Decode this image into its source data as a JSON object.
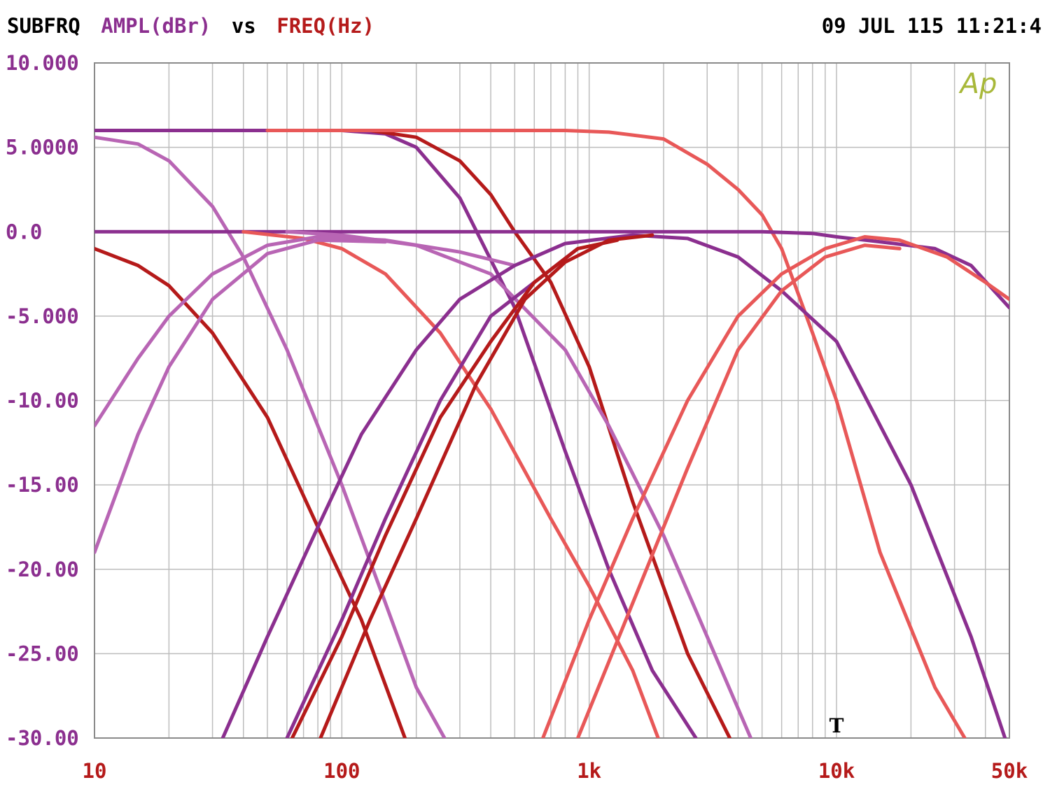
{
  "header": {
    "title_prefix": "SUBFRQ",
    "y_label": "AMPL(dBr)",
    "vs": "vs",
    "x_label": "FREQ(Hz)",
    "timestamp": "09 JUL 115 11:21:4"
  },
  "watermark": "Ap",
  "marker": "T",
  "colors": {
    "background": "#ffffff",
    "grid": "#bdbdbd",
    "frame": "#8a8a8a",
    "purple_dark": "#8b2f8f",
    "purple_light": "#b865b4",
    "red_dark": "#b51a1a",
    "red_light": "#e85858",
    "title_black": "#000000",
    "ylabel_purple": "#8b2f8f",
    "xlabel_red": "#b51a1a",
    "watermark": "#a8b83a"
  },
  "chart_data": {
    "type": "line",
    "x_scale": "log",
    "xlim": [
      10,
      50000
    ],
    "ylim": [
      -30,
      10
    ],
    "grid": true,
    "x_ticks": [
      {
        "value": 10,
        "label": "10"
      },
      {
        "value": 100,
        "label": "100"
      },
      {
        "value": 1000,
        "label": "1k"
      },
      {
        "value": 10000,
        "label": "10k"
      },
      {
        "value": 50000,
        "label": "50k"
      }
    ],
    "y_ticks": [
      {
        "value": 10,
        "label": "10.000"
      },
      {
        "value": 5,
        "label": "5.0000"
      },
      {
        "value": 0,
        "label": "0.0"
      },
      {
        "value": -5,
        "label": "-5.000"
      },
      {
        "value": -10,
        "label": "-10.00"
      },
      {
        "value": -15,
        "label": "-15.00"
      },
      {
        "value": -20,
        "label": "-20.00"
      },
      {
        "value": -25,
        "label": "-25.00"
      },
      {
        "value": -30,
        "label": "-30.00"
      }
    ],
    "marker_x": 10000,
    "series": [
      {
        "color": "purple_dark",
        "points": [
          [
            10,
            6
          ],
          [
            50,
            6
          ],
          [
            100,
            6
          ],
          [
            150,
            5.8
          ],
          [
            200,
            5
          ],
          [
            300,
            2
          ],
          [
            500,
            -4.5
          ],
          [
            800,
            -13
          ],
          [
            1200,
            -20
          ],
          [
            1800,
            -26
          ],
          [
            2700,
            -30
          ]
        ]
      },
      {
        "color": "red_dark",
        "points": [
          [
            130,
            6
          ],
          [
            200,
            5.6
          ],
          [
            300,
            4.2
          ],
          [
            400,
            2.2
          ],
          [
            500,
            0
          ],
          [
            700,
            -3
          ],
          [
            1000,
            -8
          ],
          [
            1500,
            -16
          ],
          [
            2500,
            -25
          ],
          [
            3700,
            -30
          ]
        ]
      },
      {
        "color": "red_light",
        "points": [
          [
            50,
            6
          ],
          [
            300,
            6
          ],
          [
            800,
            6
          ],
          [
            1200,
            5.9
          ],
          [
            2000,
            5.5
          ],
          [
            3000,
            4
          ],
          [
            4000,
            2.5
          ],
          [
            5000,
            1
          ],
          [
            6000,
            -1
          ],
          [
            8000,
            -6
          ],
          [
            10000,
            -10
          ],
          [
            15000,
            -19
          ],
          [
            25000,
            -27
          ],
          [
            33000,
            -30
          ]
        ]
      },
      {
        "color": "purple_light",
        "points": [
          [
            10,
            5.6
          ],
          [
            15,
            5.2
          ],
          [
            20,
            4.2
          ],
          [
            30,
            1.5
          ],
          [
            40,
            -1.5
          ],
          [
            60,
            -7
          ],
          [
            100,
            -15
          ],
          [
            150,
            -22
          ],
          [
            200,
            -27
          ],
          [
            260,
            -30
          ]
        ]
      },
      {
        "color": "red_dark",
        "points": [
          [
            10,
            -1
          ],
          [
            15,
            -2
          ],
          [
            20,
            -3.2
          ],
          [
            30,
            -6
          ],
          [
            50,
            -11
          ],
          [
            80,
            -17.5
          ],
          [
            120,
            -23
          ],
          [
            180,
            -30
          ]
        ]
      },
      {
        "color": "purple_dark",
        "points": [
          [
            10,
            0
          ],
          [
            100,
            0
          ],
          [
            1000,
            0
          ],
          [
            5000,
            0
          ],
          [
            8000,
            -0.1
          ],
          [
            10000,
            -0.3
          ],
          [
            15000,
            -0.6
          ],
          [
            25000,
            -1
          ],
          [
            35000,
            -2
          ],
          [
            50000,
            -4.5
          ]
        ]
      },
      {
        "color": "red_light",
        "points": [
          [
            40,
            0
          ],
          [
            70,
            -0.4
          ],
          [
            100,
            -1
          ],
          [
            150,
            -2.5
          ],
          [
            250,
            -6
          ],
          [
            400,
            -10.5
          ],
          [
            700,
            -17
          ],
          [
            1000,
            -21
          ],
          [
            1500,
            -26
          ],
          [
            1900,
            -30
          ]
        ]
      },
      {
        "color": "purple_light",
        "points": [
          [
            60,
            0
          ],
          [
            100,
            -0.2
          ],
          [
            200,
            -0.8
          ],
          [
            400,
            -2.5
          ],
          [
            800,
            -7
          ],
          [
            1200,
            -11.5
          ],
          [
            2000,
            -18
          ],
          [
            3000,
            -24
          ],
          [
            4500,
            -30
          ]
        ]
      },
      {
        "color": "purple_light",
        "points": [
          [
            10,
            -11.5
          ],
          [
            15,
            -7.5
          ],
          [
            20,
            -5
          ],
          [
            30,
            -2.5
          ],
          [
            50,
            -0.8
          ],
          [
            80,
            -0.3
          ],
          [
            150,
            -0.5
          ],
          [
            300,
            -1.2
          ],
          [
            500,
            -2
          ]
        ]
      },
      {
        "color": "purple_light",
        "points": [
          [
            10,
            -19
          ],
          [
            15,
            -12
          ],
          [
            20,
            -8
          ],
          [
            30,
            -4
          ],
          [
            50,
            -1.3
          ],
          [
            80,
            -0.5
          ],
          [
            150,
            -0.6
          ]
        ]
      },
      {
        "color": "purple_dark",
        "points": [
          [
            33,
            -30
          ],
          [
            50,
            -24
          ],
          [
            80,
            -17.5
          ],
          [
            120,
            -12
          ],
          [
            200,
            -7
          ],
          [
            300,
            -4
          ],
          [
            500,
            -2
          ],
          [
            800,
            -0.7
          ],
          [
            1500,
            -0.2
          ],
          [
            2500,
            -0.4
          ],
          [
            4000,
            -1.5
          ],
          [
            6000,
            -3.5
          ],
          [
            10000,
            -6.5
          ],
          [
            20000,
            -15
          ],
          [
            35000,
            -24
          ],
          [
            48000,
            -30
          ]
        ]
      },
      {
        "color": "purple_dark",
        "points": [
          [
            60,
            -30
          ],
          [
            100,
            -23
          ],
          [
            150,
            -17
          ],
          [
            250,
            -10
          ],
          [
            400,
            -5
          ],
          [
            600,
            -3
          ],
          [
            900,
            -1
          ]
        ]
      },
      {
        "color": "red_dark",
        "points": [
          [
            63,
            -30
          ],
          [
            100,
            -24
          ],
          [
            150,
            -18
          ],
          [
            250,
            -11
          ],
          [
            400,
            -6.5
          ],
          [
            600,
            -3
          ],
          [
            900,
            -1
          ],
          [
            1300,
            -0.5
          ]
        ]
      },
      {
        "color": "red_dark",
        "points": [
          [
            82,
            -30
          ],
          [
            130,
            -23
          ],
          [
            200,
            -17
          ],
          [
            350,
            -9
          ],
          [
            550,
            -4
          ],
          [
            800,
            -1.8
          ],
          [
            1200,
            -0.5
          ],
          [
            1800,
            -0.2
          ]
        ]
      },
      {
        "color": "red_light",
        "points": [
          [
            650,
            -30
          ],
          [
            1000,
            -23
          ],
          [
            1500,
            -17
          ],
          [
            2500,
            -10
          ],
          [
            4000,
            -5
          ],
          [
            6000,
            -2.5
          ],
          [
            9000,
            -1
          ],
          [
            13000,
            -0.3
          ],
          [
            18000,
            -0.5
          ],
          [
            28000,
            -1.5
          ],
          [
            40000,
            -3
          ],
          [
            50000,
            -4
          ]
        ]
      },
      {
        "color": "red_light",
        "points": [
          [
            900,
            -30
          ],
          [
            1500,
            -22
          ],
          [
            2500,
            -14
          ],
          [
            4000,
            -7
          ],
          [
            6000,
            -3.5
          ],
          [
            9000,
            -1.5
          ],
          [
            13000,
            -0.8
          ],
          [
            18000,
            -1
          ]
        ]
      }
    ]
  }
}
